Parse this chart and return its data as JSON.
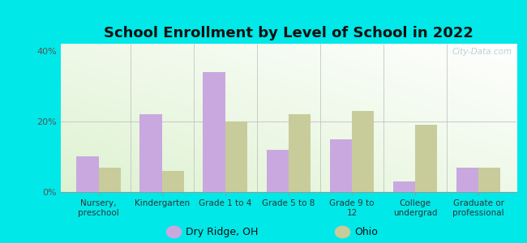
{
  "title": "School Enrollment by Level of School in 2022",
  "categories": [
    "Nursery,\npreschool",
    "Kindergarten",
    "Grade 1 to 4",
    "Grade 5 to 8",
    "Grade 9 to\n12",
    "College\nundergrad",
    "Graduate or\nprofessional"
  ],
  "dry_ridge": [
    10.0,
    22.0,
    34.0,
    12.0,
    15.0,
    3.0,
    7.0
  ],
  "ohio": [
    7.0,
    6.0,
    20.0,
    22.0,
    23.0,
    19.0,
    7.0
  ],
  "dry_ridge_color": "#c9a8e0",
  "ohio_color": "#c8cc9a",
  "dry_ridge_label": "Dry Ridge, OH",
  "ohio_label": "Ohio",
  "ylim": [
    0,
    42
  ],
  "yticks": [
    0,
    20,
    40
  ],
  "ytick_labels": [
    "0%",
    "20%",
    "40%"
  ],
  "background_outer": "#00e8e8",
  "title_fontsize": 13,
  "bar_width": 0.35,
  "watermark": "City-Data.com",
  "watermark_color": "#b0c8d0"
}
